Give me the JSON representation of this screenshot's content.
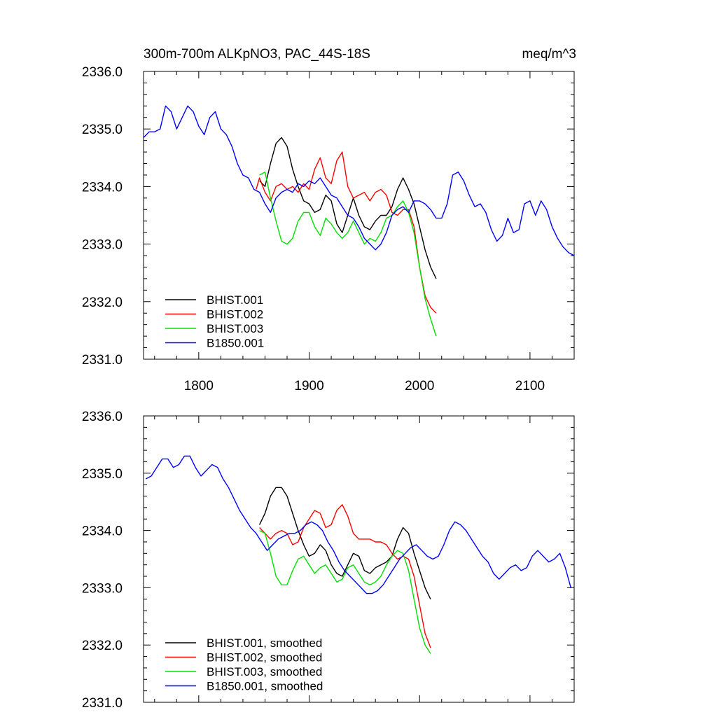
{
  "title_left": "300m-700m ALKpNO3, PAC_44S-18S",
  "title_right": "meq/m^3",
  "colors": {
    "BHIST.001": "#000000",
    "BHIST.002": "#ff0000",
    "BHIST.003": "#00e000",
    "B1850.001": "#0000ff",
    "axis": "#000000"
  },
  "chart_data": [
    {
      "type": "line",
      "panel": "top",
      "xlim": [
        1750,
        2140
      ],
      "ylim": [
        2331.0,
        2336.0
      ],
      "x_ticks": [
        1800,
        1900,
        2000,
        2100
      ],
      "x_tick_labels": [
        "1800",
        "1900",
        "2000",
        "2100"
      ],
      "y_ticks": [
        2331.0,
        2332.0,
        2333.0,
        2334.0,
        2335.0,
        2336.0
      ],
      "y_tick_labels": [
        "2331.0",
        "2332.0",
        "2333.0",
        "2334.0",
        "2335.0",
        "2336.0"
      ],
      "legend_position": "bottom-left",
      "series": [
        {
          "name": "BHIST.001",
          "color": "#000000",
          "x": [
            1855,
            1860,
            1865,
            1870,
            1875,
            1880,
            1885,
            1890,
            1895,
            1900,
            1905,
            1910,
            1915,
            1920,
            1925,
            1930,
            1935,
            1940,
            1945,
            1950,
            1955,
            1960,
            1965,
            1970,
            1975,
            1980,
            1985,
            1990,
            1995,
            2000,
            2005,
            2010,
            2015
          ],
          "y": [
            2334.1,
            2334.0,
            2334.4,
            2334.75,
            2334.85,
            2334.7,
            2334.3,
            2334.0,
            2333.75,
            2333.7,
            2333.55,
            2333.6,
            2333.85,
            2333.75,
            2333.35,
            2333.2,
            2333.5,
            2333.8,
            2333.5,
            2333.3,
            2333.25,
            2333.4,
            2333.5,
            2333.5,
            2333.65,
            2333.95,
            2334.15,
            2333.95,
            2333.7,
            2333.3,
            2332.9,
            2332.6,
            2332.4
          ]
        },
        {
          "name": "BHIST.002",
          "color": "#ff0000",
          "x": [
            1852,
            1855,
            1860,
            1865,
            1870,
            1875,
            1880,
            1885,
            1890,
            1895,
            1900,
            1905,
            1910,
            1915,
            1920,
            1925,
            1930,
            1935,
            1940,
            1945,
            1950,
            1955,
            1960,
            1965,
            1970,
            1975,
            1980,
            1985,
            1990,
            1995,
            2000,
            2005,
            2010,
            2015
          ],
          "y": [
            2333.95,
            2334.15,
            2333.9,
            2333.75,
            2334.0,
            2334.05,
            2333.95,
            2334.0,
            2333.9,
            2334.05,
            2333.95,
            2334.3,
            2334.5,
            2334.15,
            2334.05,
            2334.45,
            2334.6,
            2334.0,
            2333.8,
            2333.85,
            2333.9,
            2333.75,
            2333.9,
            2333.95,
            2333.85,
            2333.55,
            2333.5,
            2333.6,
            2333.6,
            2333.3,
            2332.6,
            2332.1,
            2331.9,
            2331.8
          ]
        },
        {
          "name": "BHIST.003",
          "color": "#00e000",
          "x": [
            1855,
            1860,
            1865,
            1870,
            1875,
            1880,
            1885,
            1890,
            1895,
            1900,
            1905,
            1910,
            1915,
            1920,
            1925,
            1930,
            1935,
            1940,
            1945,
            1950,
            1955,
            1960,
            1965,
            1970,
            1975,
            1980,
            1985,
            1990,
            1995,
            2000,
            2005,
            2010,
            2015
          ],
          "y": [
            2334.2,
            2334.25,
            2333.8,
            2333.4,
            2333.05,
            2333.0,
            2333.1,
            2333.4,
            2333.55,
            2333.55,
            2333.3,
            2333.15,
            2333.45,
            2333.35,
            2333.2,
            2333.1,
            2333.2,
            2333.4,
            2333.2,
            2333.0,
            2333.1,
            2333.05,
            2333.2,
            2333.45,
            2333.5,
            2333.65,
            2333.75,
            2333.55,
            2333.2,
            2332.6,
            2332.05,
            2331.7,
            2331.4
          ]
        },
        {
          "name": "B1850.001",
          "color": "#0000ff",
          "x": [
            1750,
            1755,
            1760,
            1765,
            1770,
            1775,
            1780,
            1785,
            1790,
            1795,
            1800,
            1805,
            1810,
            1815,
            1820,
            1825,
            1830,
            1835,
            1840,
            1845,
            1850,
            1855,
            1860,
            1865,
            1870,
            1875,
            1880,
            1885,
            1890,
            1895,
            1900,
            1905,
            1910,
            1915,
            1920,
            1925,
            1930,
            1935,
            1940,
            1945,
            1950,
            1955,
            1960,
            1965,
            1970,
            1975,
            1980,
            1985,
            1990,
            1995,
            2000,
            2005,
            2010,
            2015,
            2020,
            2025,
            2030,
            2035,
            2040,
            2045,
            2050,
            2055,
            2060,
            2065,
            2070,
            2075,
            2080,
            2085,
            2090,
            2095,
            2100,
            2105,
            2110,
            2115,
            2120,
            2125,
            2130,
            2135,
            2140
          ],
          "y": [
            2334.85,
            2334.95,
            2334.95,
            2335.0,
            2335.4,
            2335.3,
            2335.0,
            2335.2,
            2335.4,
            2335.3,
            2335.05,
            2334.9,
            2335.2,
            2335.3,
            2335.0,
            2334.9,
            2334.7,
            2334.4,
            2334.2,
            2334.15,
            2333.95,
            2333.9,
            2333.7,
            2333.55,
            2333.8,
            2333.9,
            2333.95,
            2333.9,
            2334.05,
            2334.0,
            2334.1,
            2334.05,
            2334.15,
            2334.0,
            2333.85,
            2333.8,
            2333.65,
            2333.5,
            2333.45,
            2333.3,
            2333.1,
            2333.0,
            2332.9,
            2333.0,
            2333.2,
            2333.5,
            2333.6,
            2333.65,
            2333.55,
            2333.75,
            2333.75,
            2333.7,
            2333.6,
            2333.45,
            2333.45,
            2333.7,
            2334.2,
            2334.25,
            2334.1,
            2333.85,
            2333.65,
            2333.7,
            2333.55,
            2333.25,
            2333.05,
            2333.15,
            2333.45,
            2333.2,
            2333.25,
            2333.7,
            2333.75,
            2333.5,
            2333.75,
            2333.6,
            2333.3,
            2333.1,
            2332.95,
            2332.85,
            2332.8
          ]
        }
      ]
    },
    {
      "type": "line",
      "panel": "bottom",
      "xlim": [
        1750,
        2140
      ],
      "ylim": [
        2331.0,
        2336.0
      ],
      "x_ticks": [
        1800,
        1900,
        2000,
        2100
      ],
      "y_ticks": [
        2331.0,
        2332.0,
        2333.0,
        2334.0,
        2335.0,
        2336.0
      ],
      "y_tick_labels": [
        "2331.0",
        "2332.0",
        "2333.0",
        "2334.0",
        "2335.0",
        "2336.0"
      ],
      "legend_position": "bottom-left",
      "series": [
        {
          "name": "BHIST.001, smoothed",
          "color": "#000000",
          "x": [
            1855,
            1860,
            1865,
            1870,
            1875,
            1880,
            1885,
            1890,
            1895,
            1900,
            1905,
            1910,
            1915,
            1920,
            1925,
            1930,
            1935,
            1940,
            1945,
            1950,
            1955,
            1960,
            1965,
            1970,
            1975,
            1980,
            1985,
            1990,
            1995,
            2000,
            2005,
            2010
          ],
          "y": [
            2334.1,
            2334.3,
            2334.6,
            2334.75,
            2334.75,
            2334.6,
            2334.3,
            2334.0,
            2333.75,
            2333.55,
            2333.6,
            2333.75,
            2333.65,
            2333.4,
            2333.25,
            2333.2,
            2333.4,
            2333.6,
            2333.55,
            2333.3,
            2333.25,
            2333.35,
            2333.4,
            2333.45,
            2333.55,
            2333.85,
            2334.05,
            2333.95,
            2333.6,
            2333.3,
            2333.0,
            2332.8
          ]
        },
        {
          "name": "BHIST.002, smoothed",
          "color": "#ff0000",
          "x": [
            1855,
            1860,
            1865,
            1870,
            1875,
            1880,
            1885,
            1890,
            1895,
            1900,
            1905,
            1910,
            1915,
            1920,
            1925,
            1930,
            1935,
            1940,
            1945,
            1950,
            1955,
            1960,
            1965,
            1970,
            1975,
            1980,
            1985,
            1990,
            1995,
            2000,
            2005,
            2010
          ],
          "y": [
            2334.05,
            2333.95,
            2333.85,
            2333.95,
            2334.0,
            2333.95,
            2333.75,
            2333.8,
            2334.05,
            2334.2,
            2334.35,
            2334.3,
            2334.05,
            2334.1,
            2334.35,
            2334.45,
            2334.25,
            2333.95,
            2333.85,
            2333.85,
            2333.85,
            2333.8,
            2333.8,
            2333.75,
            2333.6,
            2333.5,
            2333.55,
            2333.5,
            2333.2,
            2332.7,
            2332.2,
            2331.95
          ]
        },
        {
          "name": "BHIST.003, smoothed",
          "color": "#00e000",
          "x": [
            1855,
            1860,
            1865,
            1870,
            1875,
            1880,
            1885,
            1890,
            1895,
            1900,
            1905,
            1910,
            1915,
            1920,
            1925,
            1930,
            1935,
            1940,
            1945,
            1950,
            1955,
            1960,
            1965,
            1970,
            1975,
            1980,
            1985,
            1990,
            1995,
            2000,
            2005,
            2010
          ],
          "y": [
            2334.0,
            2333.95,
            2333.6,
            2333.2,
            2333.05,
            2333.05,
            2333.3,
            2333.5,
            2333.55,
            2333.4,
            2333.25,
            2333.35,
            2333.4,
            2333.25,
            2333.1,
            2333.15,
            2333.35,
            2333.4,
            2333.25,
            2333.1,
            2333.05,
            2333.1,
            2333.2,
            2333.4,
            2333.55,
            2333.65,
            2333.6,
            2333.3,
            2332.8,
            2332.3,
            2332.0,
            2331.85
          ]
        },
        {
          "name": "B1850.001, smoothed",
          "color": "#0000ff",
          "x": [
            1752,
            1757,
            1762,
            1767,
            1772,
            1777,
            1782,
            1787,
            1792,
            1797,
            1802,
            1807,
            1812,
            1817,
            1822,
            1827,
            1832,
            1837,
            1842,
            1847,
            1852,
            1857,
            1862,
            1867,
            1872,
            1877,
            1882,
            1887,
            1892,
            1897,
            1902,
            1907,
            1912,
            1917,
            1922,
            1927,
            1932,
            1937,
            1942,
            1947,
            1952,
            1957,
            1962,
            1967,
            1972,
            1977,
            1982,
            1987,
            1992,
            1997,
            2002,
            2007,
            2012,
            2017,
            2022,
            2027,
            2032,
            2037,
            2042,
            2047,
            2052,
            2057,
            2062,
            2067,
            2072,
            2077,
            2082,
            2087,
            2092,
            2097,
            2102,
            2107,
            2112,
            2117,
            2122,
            2127,
            2132,
            2137
          ],
          "y": [
            2334.9,
            2334.95,
            2335.1,
            2335.25,
            2335.25,
            2335.1,
            2335.15,
            2335.3,
            2335.3,
            2335.1,
            2334.95,
            2335.05,
            2335.15,
            2335.1,
            2334.9,
            2334.75,
            2334.55,
            2334.35,
            2334.2,
            2334.05,
            2333.95,
            2333.8,
            2333.65,
            2333.75,
            2333.85,
            2333.9,
            2333.95,
            2333.95,
            2334.0,
            2334.1,
            2334.15,
            2334.1,
            2334.0,
            2333.8,
            2333.65,
            2333.45,
            2333.3,
            2333.2,
            2333.1,
            2333.0,
            2332.9,
            2332.9,
            2332.95,
            2333.05,
            2333.2,
            2333.35,
            2333.5,
            2333.6,
            2333.7,
            2333.75,
            2333.65,
            2333.55,
            2333.5,
            2333.55,
            2333.75,
            2334.0,
            2334.15,
            2334.1,
            2334.0,
            2333.85,
            2333.7,
            2333.55,
            2333.45,
            2333.25,
            2333.15,
            2333.25,
            2333.35,
            2333.4,
            2333.3,
            2333.35,
            2333.55,
            2333.65,
            2333.55,
            2333.45,
            2333.5,
            2333.6,
            2333.35,
            2333.0
          ]
        }
      ]
    }
  ]
}
